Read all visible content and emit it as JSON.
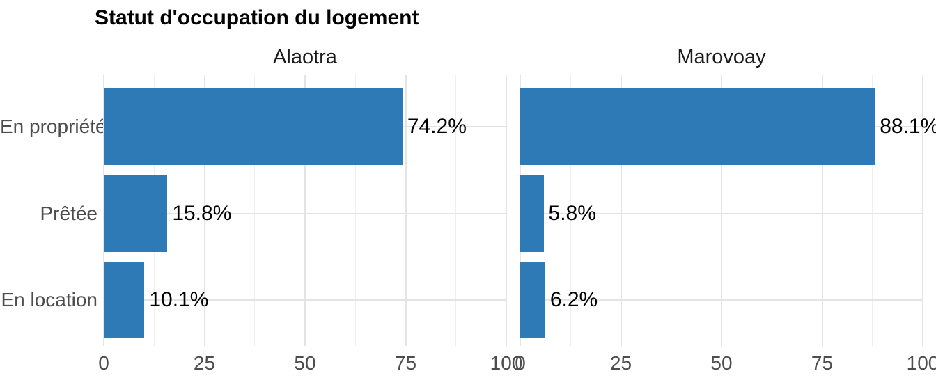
{
  "title": "Statut d'occupation du logement",
  "colors": {
    "bar": "#2E7AB6",
    "grid_major": "#E4E4E4",
    "grid_minor": "#EFEFEF",
    "axis_text": "#4D4D4D",
    "strip_text": "#1A1A1A",
    "title_text": "#000000",
    "background": "#FFFFFF"
  },
  "chart_data": {
    "type": "bar",
    "orientation": "horizontal",
    "title": "Statut d'occupation du logement",
    "categories": [
      "En propriété",
      "Prêtée",
      "En location"
    ],
    "series": [
      {
        "name": "Alaotra",
        "values": [
          74.2,
          15.8,
          10.1
        ],
        "labels": [
          "74.2%",
          "15.8%",
          "10.1%"
        ]
      },
      {
        "name": "Marovoay",
        "values": [
          88.1,
          5.8,
          6.2
        ],
        "labels": [
          "88.1%",
          "5.8%",
          "6.2%"
        ]
      }
    ],
    "xlim": [
      0,
      100
    ],
    "x_major_ticks": [
      0,
      25,
      50,
      75,
      100
    ],
    "x_tick_labels": [
      "0",
      "25",
      "50",
      "75",
      "100"
    ],
    "x_minor_ticks": [
      12.5,
      37.5,
      62.5,
      87.5
    ],
    "grid": {
      "vertical_major": true,
      "vertical_minor": true,
      "horizontal_at_categories": true
    },
    "legend": "none",
    "bar_color": "#2E7AB6",
    "data_label_suffix": "%"
  }
}
